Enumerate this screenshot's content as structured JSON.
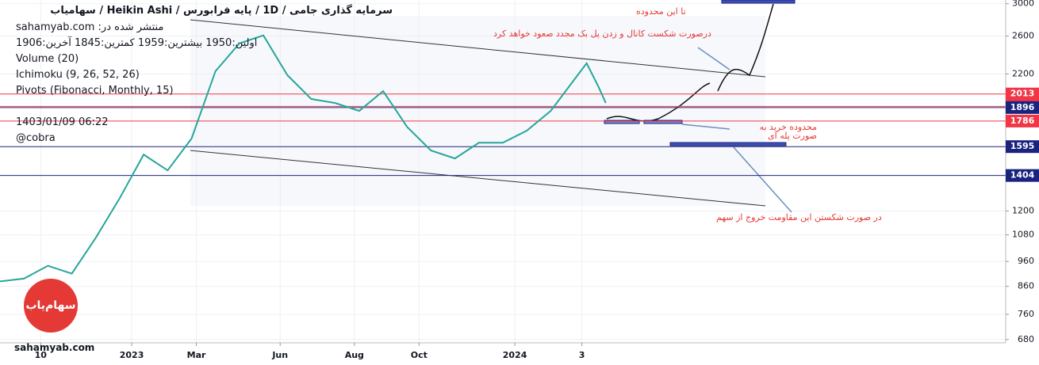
{
  "chart_data": {
    "type": "line",
    "title": "سرمایه گذاری جامی / 1D / پایه فرابورس / Heikin Ashi / سهامیاب",
    "info_lines": [
      "منتشر شده در: sahamyab.com",
      "اولین:1950  بیشترین:1959  کمترین:1845  آخرین:1906",
      "Volume (20)",
      "Ichimoku (9, 26, 52, 26)",
      "Pivots (Fibonacci, Monthly, 15)",
      "1403/01/09 06:22",
      "@cobra"
    ],
    "footer": "sahamyab.com",
    "logo": "سهام‌یاب",
    "annotations": [
      "تا این محدوده",
      "درصورت شکست کانال و زدن پل بک مجدد صعود خواهد کرد",
      "محدوده خرید به صورت پله ای",
      "در صورت شکستن این مقاومت خروج از سهم"
    ],
    "x": [
      0,
      10,
      20,
      30,
      40,
      50,
      60,
      70,
      80,
      90,
      100,
      110,
      120,
      130,
      140,
      150,
      160,
      170,
      180,
      190,
      200,
      210,
      220,
      230,
      240,
      245,
      250,
      253
    ],
    "values": [
      879,
      890,
      942,
      910,
      1066,
      1270,
      1540,
      1436,
      1653,
      2227,
      2518,
      2608,
      2188,
      1969,
      1934,
      1868,
      2039,
      1741,
      1568,
      1514,
      1623,
      1623,
      1712,
      1868,
      2150,
      2306,
      2076,
      1934
    ],
    "color": "#26a69a",
    "xlim": [
      0,
      420
    ],
    "xticks": [
      {
        "value": 17,
        "label": "10"
      },
      {
        "value": 55,
        "label": "2023"
      },
      {
        "value": 82,
        "label": "Mar"
      },
      {
        "value": 117,
        "label": "Jun"
      },
      {
        "value": 148,
        "label": "Aug"
      },
      {
        "value": 175,
        "label": "Oct"
      },
      {
        "value": 215,
        "label": "2024"
      },
      {
        "value": 243,
        "label": "3"
      }
    ],
    "ylim": [
      670,
      3050
    ],
    "yticks": [
      680,
      760,
      860,
      960,
      1080,
      1200,
      2200,
      2600,
      3000
    ],
    "log_scale": true,
    "price_levels": [
      {
        "value": 2013,
        "color": "#f23645"
      },
      {
        "value": 1906,
        "color": "#f23645"
      },
      {
        "value": 1896,
        "color": "#1a237e"
      },
      {
        "value": 1786,
        "color": "#f23645"
      },
      {
        "value": 1595,
        "color": "#1a237e"
      },
      {
        "value": 1404,
        "color": "#1a237e"
      }
    ]
  }
}
